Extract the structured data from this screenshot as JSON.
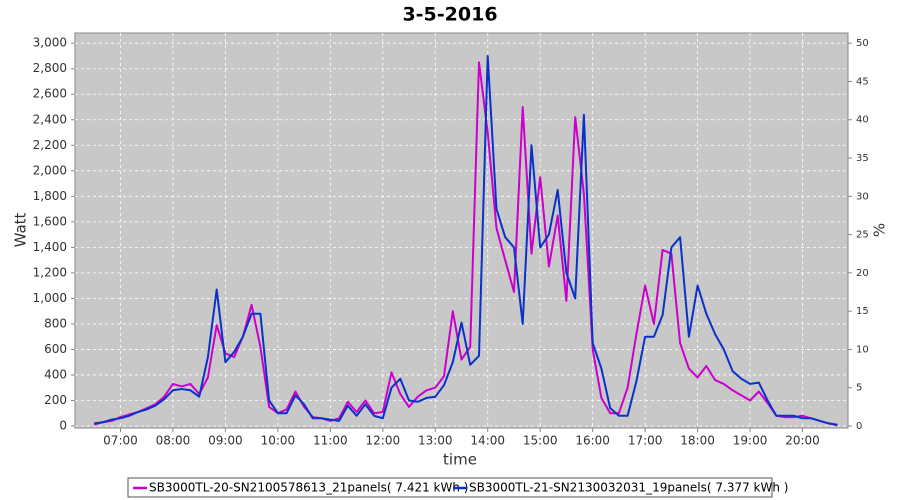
{
  "chart_data": {
    "type": "line",
    "title": "3-5-2016",
    "x_label": "time",
    "y_label": "Watt",
    "y2_label": "%",
    "x": [
      "06:30",
      "06:40",
      "06:50",
      "07:00",
      "07:10",
      "07:20",
      "07:30",
      "07:40",
      "07:50",
      "08:00",
      "08:10",
      "08:20",
      "08:30",
      "08:40",
      "08:50",
      "09:00",
      "09:10",
      "09:20",
      "09:30",
      "09:40",
      "09:50",
      "10:00",
      "10:10",
      "10:20",
      "10:30",
      "10:40",
      "10:50",
      "11:00",
      "11:10",
      "11:20",
      "11:30",
      "11:40",
      "11:50",
      "12:00",
      "12:10",
      "12:20",
      "12:30",
      "12:40",
      "12:50",
      "13:00",
      "13:10",
      "13:20",
      "13:30",
      "13:40",
      "13:50",
      "14:00",
      "14:10",
      "14:20",
      "14:30",
      "14:40",
      "14:50",
      "15:00",
      "15:10",
      "15:20",
      "15:30",
      "15:40",
      "15:50",
      "16:00",
      "16:10",
      "16:20",
      "16:30",
      "16:40",
      "16:50",
      "17:00",
      "17:10",
      "17:20",
      "17:30",
      "17:40",
      "17:50",
      "18:00",
      "18:10",
      "18:20",
      "18:30",
      "18:40",
      "18:50",
      "19:00",
      "19:10",
      "19:20",
      "19:30",
      "19:40",
      "19:50",
      "20:00",
      "20:10",
      "20:20",
      "20:30",
      "20:40"
    ],
    "series": [
      {
        "name": "SB3000TL-20-SN2100578613_21panels( 7.421 kWh )",
        "color": "#cc00cc",
        "values": [
          10,
          30,
          40,
          70,
          90,
          110,
          140,
          170,
          230,
          330,
          310,
          330,
          250,
          380,
          790,
          570,
          540,
          700,
          950,
          620,
          150,
          100,
          130,
          270,
          150,
          70,
          60,
          40,
          60,
          190,
          110,
          200,
          100,
          110,
          420,
          250,
          150,
          230,
          280,
          300,
          390,
          900,
          520,
          620,
          2850,
          2300,
          1550,
          1300,
          1050,
          2500,
          1350,
          1950,
          1250,
          1650,
          980,
          2420,
          1820,
          600,
          220,
          100,
          100,
          300,
          720,
          1100,
          800,
          1380,
          1350,
          650,
          450,
          380,
          470,
          360,
          330,
          280,
          240,
          200,
          270,
          180,
          80,
          70,
          70,
          80,
          60,
          40,
          20,
          5
        ]
      },
      {
        "name": "SB3000TL-21-SN2130032031_19panels( 7.377 kWh )",
        "color": "#0a32c8",
        "values": [
          20,
          30,
          50,
          60,
          80,
          110,
          130,
          160,
          210,
          280,
          290,
          280,
          230,
          540,
          1070,
          500,
          580,
          700,
          880,
          880,
          200,
          100,
          100,
          240,
          170,
          60,
          60,
          50,
          40,
          160,
          80,
          170,
          80,
          60,
          300,
          370,
          200,
          190,
          220,
          230,
          320,
          500,
          810,
          480,
          550,
          2900,
          1700,
          1480,
          1400,
          800,
          2200,
          1400,
          1500,
          1850,
          1200,
          1000,
          2440,
          650,
          450,
          140,
          80,
          80,
          350,
          700,
          700,
          870,
          1400,
          1480,
          700,
          1100,
          880,
          720,
          600,
          430,
          370,
          330,
          340,
          200,
          80,
          80,
          80,
          60,
          60,
          40,
          20,
          10
        ]
      }
    ],
    "xlim": [
      "06:08",
      "20:52"
    ],
    "xticks": [
      "07:00",
      "08:00",
      "09:00",
      "10:00",
      "11:00",
      "12:00",
      "13:00",
      "14:00",
      "15:00",
      "16:00",
      "17:00",
      "18:00",
      "19:00",
      "20:00"
    ],
    "ylim": [
      0,
      3080
    ],
    "yticks": [
      0,
      200,
      400,
      600,
      800,
      {
        "value": 1000,
        "label": "1,000"
      },
      {
        "value": 1200,
        "label": "1,200"
      },
      {
        "value": 1400,
        "label": "1,400"
      },
      {
        "value": 1600,
        "label": "1,600"
      },
      {
        "value": 1800,
        "label": "1,800"
      },
      {
        "value": 2000,
        "label": "2,000"
      },
      {
        "value": 2200,
        "label": "2,200"
      },
      {
        "value": 2400,
        "label": "2,400"
      },
      {
        "value": 2600,
        "label": "2,600"
      },
      {
        "value": 2800,
        "label": "2,800"
      },
      {
        "value": 3000,
        "label": "3,000"
      }
    ],
    "y2lim": [
      0,
      51.33
    ],
    "y2ticks": [
      0,
      5,
      10,
      15,
      20,
      25,
      30,
      35,
      40,
      45,
      50
    ],
    "grid": true
  }
}
